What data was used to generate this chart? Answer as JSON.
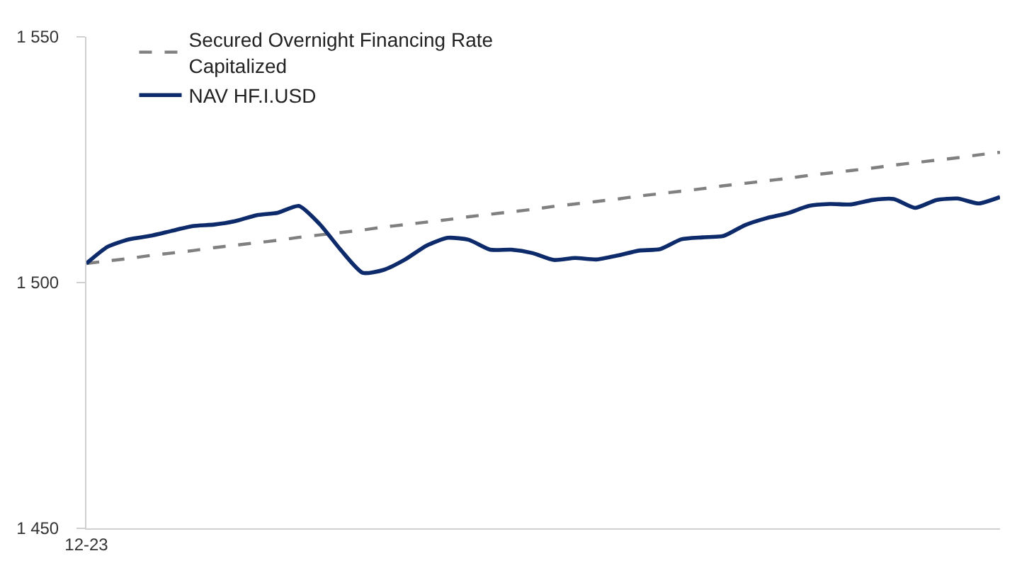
{
  "chart_data": {
    "type": "line",
    "categories": [
      "12-23",
      null,
      null,
      null,
      null,
      null,
      null,
      null,
      null,
      null,
      null,
      null,
      null,
      null,
      null,
      null,
      null,
      null,
      null,
      null,
      null,
      null,
      null,
      null,
      null,
      null,
      null,
      null,
      null,
      null,
      null,
      null,
      null,
      null,
      null,
      null,
      null,
      null,
      null,
      null,
      null,
      null,
      null,
      null
    ],
    "series": [
      {
        "name": "Secured Overnight Financing Rate Capitalized",
        "color": "#808080",
        "line_style": "dashed",
        "values": [
          1503.9,
          1504.4,
          1504.9,
          1505.5,
          1506.0,
          1506.5,
          1507.1,
          1507.6,
          1508.1,
          1508.6,
          1509.2,
          1509.7,
          1510.2,
          1510.7,
          1511.3,
          1511.8,
          1512.3,
          1512.8,
          1513.4,
          1513.9,
          1514.4,
          1514.9,
          1515.5,
          1516.0,
          1516.5,
          1517.0,
          1517.6,
          1518.1,
          1518.6,
          1519.1,
          1519.7,
          1520.2,
          1520.7,
          1521.2,
          1521.8,
          1522.3,
          1522.8,
          1523.3,
          1523.9,
          1524.4,
          1524.9,
          1525.4,
          1526.0,
          1526.5
        ]
      },
      {
        "name": "NAV HF.I.USD",
        "color": "#0d2a6b",
        "line_style": "solid",
        "values": [
          1503.9,
          1507.3,
          1508.8,
          1509.5,
          1510.5,
          1511.5,
          1511.8,
          1512.5,
          1513.7,
          1514.2,
          1515.6,
          1511.8,
          1506.5,
          1502.0,
          1502.6,
          1504.7,
          1507.5,
          1509.1,
          1508.7,
          1506.7,
          1506.7,
          1506.0,
          1504.6,
          1505.0,
          1504.7,
          1505.5,
          1506.5,
          1506.8,
          1508.8,
          1509.2,
          1509.5,
          1511.7,
          1513.1,
          1514.1,
          1515.6,
          1516.0,
          1515.9,
          1516.8,
          1517.0,
          1515.2,
          1516.8,
          1517.1,
          1516.1,
          1517.4
        ]
      }
    ],
    "ylim": [
      1450,
      1550
    ],
    "yticks": [
      {
        "value": 1450,
        "label": "1 450"
      },
      {
        "value": 1500,
        "label": "1 500"
      },
      {
        "value": 1550,
        "label": "1 550"
      }
    ],
    "grid": false,
    "legend": "top left",
    "marker": "none"
  }
}
